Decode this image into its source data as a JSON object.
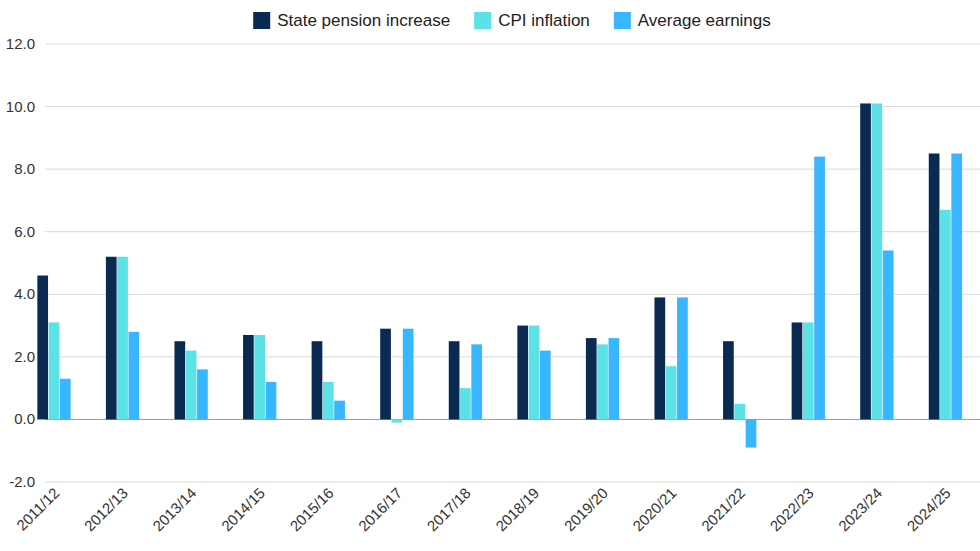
{
  "chart_data": {
    "type": "bar",
    "categories": [
      "2011/12",
      "2012/13",
      "2013/14",
      "2014/15",
      "2015/16",
      "2016/17",
      "2017/18",
      "2018/19",
      "2019/20",
      "2020/21",
      "2021/22",
      "2022/23",
      "2023/24",
      "2024/25"
    ],
    "series": [
      {
        "name": "State pension increase",
        "color": "#0b2a52",
        "values": [
          4.6,
          5.2,
          2.5,
          2.7,
          2.5,
          2.9,
          2.5,
          3.0,
          2.6,
          3.9,
          2.5,
          3.1,
          10.1,
          8.5
        ]
      },
      {
        "name": "CPI inflation",
        "color": "#5ce1e6",
        "values": [
          3.1,
          5.2,
          2.2,
          2.7,
          1.2,
          -0.1,
          1.0,
          3.0,
          2.4,
          1.7,
          0.5,
          3.1,
          10.1,
          6.7
        ]
      },
      {
        "name": "Average earnings",
        "color": "#38b6ff",
        "values": [
          1.3,
          2.8,
          1.6,
          1.2,
          0.6,
          2.9,
          2.4,
          2.2,
          2.6,
          3.9,
          -0.9,
          8.4,
          5.4,
          8.5
        ]
      }
    ],
    "ylim": [
      -2,
      12
    ],
    "yticks": [
      {
        "value": -2,
        "label": "-2.0"
      },
      {
        "value": 0,
        "label": "0.0"
      },
      {
        "value": 2,
        "label": "2.0"
      },
      {
        "value": 4,
        "label": "4.0"
      },
      {
        "value": 6,
        "label": "6.0"
      },
      {
        "value": 8,
        "label": "8.0"
      },
      {
        "value": 10,
        "label": "10.0"
      },
      {
        "value": 12,
        "label": "12.0"
      }
    ],
    "grid": true,
    "legend": "top"
  }
}
